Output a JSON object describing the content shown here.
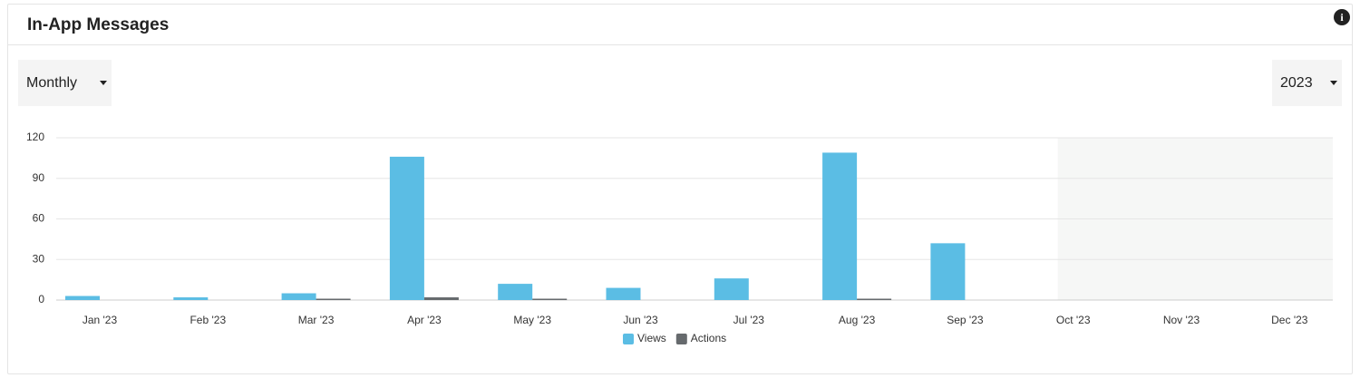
{
  "header": {
    "title": "In-App Messages"
  },
  "controls": {
    "period": "Monthly",
    "year": "2023"
  },
  "chart_data": {
    "type": "bar",
    "categories": [
      "Jan '23",
      "Feb '23",
      "Mar '23",
      "Apr '23",
      "May '23",
      "Jun '23",
      "Jul '23",
      "Aug '23",
      "Sep '23",
      "Oct '23",
      "Nov '23",
      "Dec '23"
    ],
    "series": [
      {
        "name": "Views",
        "color": "#5bbde4",
        "values": [
          3,
          2,
          5,
          106,
          12,
          9,
          16,
          109,
          42,
          null,
          null,
          null
        ]
      },
      {
        "name": "Actions",
        "color": "#666a6d",
        "values": [
          0,
          0,
          1,
          2,
          1,
          0,
          0,
          1,
          0,
          null,
          null,
          null
        ]
      }
    ],
    "ylim": [
      0,
      120
    ],
    "yticks": [
      0,
      30,
      60,
      90,
      120
    ],
    "grid": true
  }
}
